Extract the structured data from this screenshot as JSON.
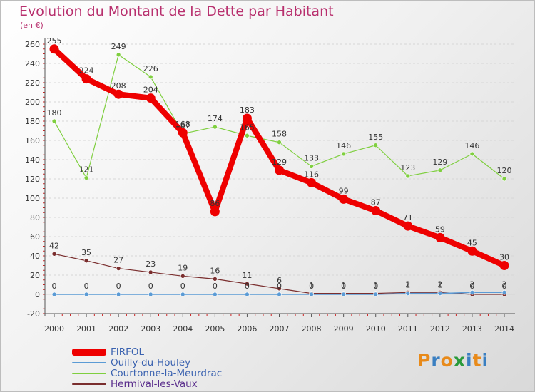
{
  "title": "Evolution du Montant de la Dette par Habitant",
  "unit_label": "(en €)",
  "logo_text": "Proxiti",
  "chart_data": {
    "type": "line",
    "title": "Evolution du Montant de la Dette par Habitant",
    "ylabel": "(en €)",
    "xlabel": "",
    "x": [
      "2000",
      "2001",
      "2002",
      "2003",
      "2004",
      "2005",
      "2006",
      "2007",
      "2008",
      "2009",
      "2010",
      "2011",
      "2012",
      "2013",
      "2014"
    ],
    "ylim": [
      -20,
      260
    ],
    "yticks": [
      -20,
      0,
      20,
      40,
      60,
      80,
      100,
      120,
      140,
      160,
      180,
      200,
      220,
      240,
      260
    ],
    "grid": "horizontal",
    "legend_position": "bottom-left",
    "series": [
      {
        "name": "FIRFOL",
        "color": "#ee0000",
        "values": [
          255,
          224,
          208,
          204,
          168,
          86,
          183,
          129,
          116,
          99,
          87,
          71,
          59,
          45,
          30
        ]
      },
      {
        "name": "Ouilly-du-Houley",
        "color": "#5b9bd5",
        "values": [
          0,
          0,
          0,
          0,
          0,
          0,
          0,
          0,
          0,
          0,
          0,
          1,
          1,
          2,
          2
        ]
      },
      {
        "name": "Courtonne-la-Meurdrac",
        "color": "#7fcf3f",
        "values": [
          180,
          121,
          249,
          226,
          167,
          174,
          165,
          158,
          133,
          146,
          155,
          123,
          129,
          146,
          120
        ]
      },
      {
        "name": "Hermival-les-Vaux",
        "color": "#7a2e2e",
        "values": [
          42,
          35,
          27,
          23,
          19,
          16,
          11,
          6,
          1,
          1,
          1,
          2,
          2,
          0,
          0
        ]
      }
    ]
  }
}
